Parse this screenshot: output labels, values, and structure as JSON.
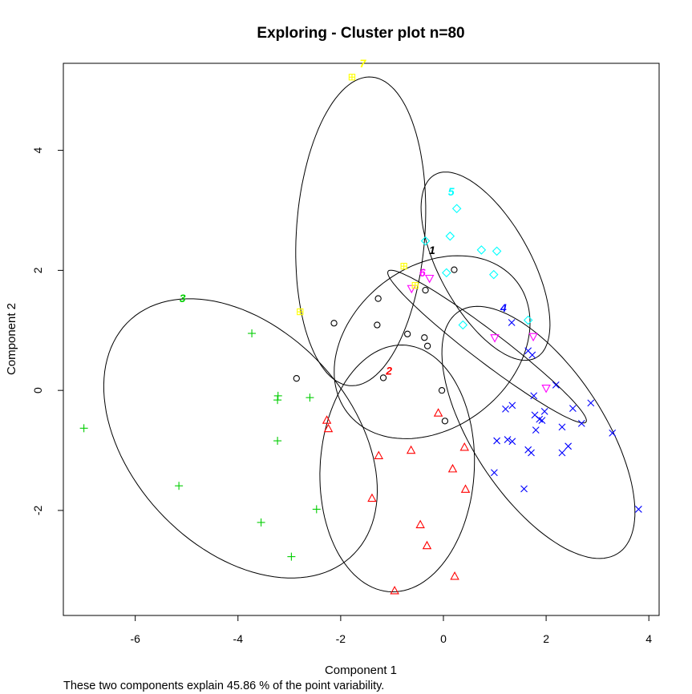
{
  "chart_data": {
    "type": "scatter",
    "title": "Exploring - Cluster plot n=80",
    "xlabel": "Component 1",
    "ylabel": "Component 2",
    "subtitle": "These two components explain 45.86 % of the point variability.",
    "xlim": [
      -7.4,
      4.2
    ],
    "ylim": [
      -3.75,
      5.45
    ],
    "xticks": [
      -6,
      -4,
      -2,
      0,
      2,
      4
    ],
    "yticks": [
      -2,
      0,
      2,
      4
    ],
    "grid": false,
    "clusters": [
      {
        "label": "1",
        "color": "#000000",
        "marker": "circle",
        "ellipse": {
          "cx": -0.22,
          "cy": 0.72,
          "rx": 2.0,
          "ry": 1.4,
          "angle": 25
        },
        "label_at": [
          -0.22,
          2.27
        ],
        "points": [
          [
            0.21,
            2.01
          ],
          [
            -0.35,
            1.67
          ],
          [
            -1.27,
            1.53
          ],
          [
            -2.13,
            1.12
          ],
          [
            -1.29,
            1.09
          ],
          [
            -0.7,
            0.94
          ],
          [
            -0.37,
            0.88
          ],
          [
            -0.31,
            0.74
          ],
          [
            -1.17,
            0.21
          ],
          [
            -2.86,
            0.2
          ],
          [
            -0.03,
            0.0
          ],
          [
            0.03,
            -0.51
          ]
        ]
      },
      {
        "label": "2",
        "color": "#ff0000",
        "marker": "triangle",
        "ellipse": {
          "cx": -0.9,
          "cy": -1.3,
          "rx": 1.5,
          "ry": 2.06,
          "angle": -5
        },
        "label_at": [
          -1.06,
          0.26
        ],
        "points": [
          [
            -0.1,
            -0.38
          ],
          [
            -2.27,
            -0.5
          ],
          [
            -2.24,
            -0.64
          ],
          [
            0.41,
            -0.95
          ],
          [
            -0.63,
            -1.0
          ],
          [
            -1.26,
            -1.09
          ],
          [
            0.18,
            -1.31
          ],
          [
            0.43,
            -1.65
          ],
          [
            -1.39,
            -1.8
          ],
          [
            -0.45,
            -2.24
          ],
          [
            -0.32,
            -2.59
          ],
          [
            0.22,
            -3.1
          ],
          [
            -0.95,
            -3.34
          ]
        ]
      },
      {
        "label": "3",
        "color": "#00cd00",
        "marker": "plus",
        "ellipse": {
          "cx": -3.95,
          "cy": -0.8,
          "rx": 2.95,
          "ry": 1.95,
          "angle": -35
        },
        "label_at": [
          -5.08,
          1.47
        ],
        "points": [
          [
            -3.73,
            0.95
          ],
          [
            -7.0,
            -0.63
          ],
          [
            -3.22,
            -0.09
          ],
          [
            -3.23,
            -0.16
          ],
          [
            -2.6,
            -0.12
          ],
          [
            -3.23,
            -0.84
          ],
          [
            -5.15,
            -1.59
          ],
          [
            -2.47,
            -1.98
          ],
          [
            -3.55,
            -2.2
          ],
          [
            -2.96,
            -2.77
          ]
        ]
      },
      {
        "label": "4",
        "color": "#0000ff",
        "marker": "x",
        "ellipse": {
          "cx": 1.85,
          "cy": -0.7,
          "rx": 2.55,
          "ry": 1.2,
          "angle": -50
        },
        "label_at": [
          1.17,
          1.31
        ],
        "points": [
          [
            1.33,
            1.13
          ],
          [
            1.65,
            0.66
          ],
          [
            1.73,
            0.59
          ],
          [
            2.19,
            0.09
          ],
          [
            1.76,
            -0.09
          ],
          [
            2.87,
            -0.21
          ],
          [
            1.34,
            -0.25
          ],
          [
            1.21,
            -0.31
          ],
          [
            2.52,
            -0.3
          ],
          [
            1.97,
            -0.35
          ],
          [
            1.78,
            -0.41
          ],
          [
            1.87,
            -0.48
          ],
          [
            1.92,
            -0.5
          ],
          [
            1.25,
            -0.82
          ],
          [
            1.34,
            -0.85
          ],
          [
            1.04,
            -0.84
          ],
          [
            2.31,
            -0.61
          ],
          [
            1.8,
            -0.66
          ],
          [
            2.69,
            -0.55
          ],
          [
            3.29,
            -0.71
          ],
          [
            1.65,
            -0.99
          ],
          [
            1.71,
            -1.04
          ],
          [
            2.43,
            -0.93
          ],
          [
            2.31,
            -1.04
          ],
          [
            0.99,
            -1.37
          ],
          [
            1.57,
            -1.64
          ],
          [
            3.8,
            -1.98
          ]
        ]
      },
      {
        "label": "5",
        "color": "#00ffff",
        "marker": "diamond",
        "ellipse": {
          "cx": 0.82,
          "cy": 2.07,
          "rx": 1.82,
          "ry": 0.85,
          "angle": -55
        },
        "label_at": [
          0.15,
          3.25
        ],
        "points": [
          [
            0.26,
            3.03
          ],
          [
            0.13,
            2.57
          ],
          [
            -0.35,
            2.49
          ],
          [
            0.74,
            2.34
          ],
          [
            1.04,
            2.32
          ],
          [
            0.06,
            1.96
          ],
          [
            0.98,
            1.93
          ],
          [
            0.38,
            1.09
          ],
          [
            1.65,
            1.17
          ]
        ]
      },
      {
        "label": "6",
        "color": "#ff00ff",
        "marker": "down-triangle",
        "ellipse": {
          "cx": 0.85,
          "cy": 0.73,
          "rx": 2.3,
          "ry": 0.27,
          "angle": -33
        },
        "label_at": [
          -0.41,
          1.9
        ],
        "points": [
          [
            -0.27,
            1.87
          ],
          [
            -0.62,
            1.7
          ],
          [
            1.0,
            0.88
          ],
          [
            1.75,
            0.9
          ],
          [
            2.0,
            0.04
          ]
        ]
      },
      {
        "label": "7",
        "color": "#ffff00",
        "marker": "square-cross",
        "ellipse": {
          "cx": -1.61,
          "cy": 2.65,
          "rx": 2.58,
          "ry": 1.25,
          "angle": 85
        },
        "label_at": [
          -1.57,
          5.38
        ],
        "points": [
          [
            -1.78,
            5.22
          ],
          [
            -0.77,
            2.07
          ],
          [
            -0.55,
            1.75
          ],
          [
            -2.79,
            1.31
          ]
        ]
      }
    ]
  }
}
